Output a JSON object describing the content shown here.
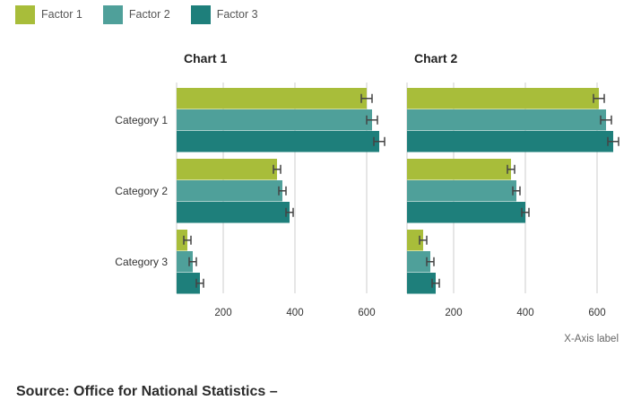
{
  "legend": [
    {
      "label": "Factor 1",
      "color": "#a8bd3a"
    },
    {
      "label": "Factor 2",
      "color": "#4fa09a"
    },
    {
      "label": "Factor 3",
      "color": "#1e7f7b"
    }
  ],
  "chart_data": [
    {
      "type": "bar",
      "orientation": "horizontal",
      "title": "Chart 1",
      "categories": [
        "Category 1",
        "Category 2",
        "Category 3"
      ],
      "series": [
        {
          "name": "Factor 1",
          "values": [
            600,
            350,
            100
          ],
          "error": [
            15,
            10,
            10
          ]
        },
        {
          "name": "Factor 2",
          "values": [
            615,
            365,
            115
          ],
          "error": [
            15,
            10,
            10
          ]
        },
        {
          "name": "Factor 3",
          "values": [
            635,
            385,
            135
          ],
          "error": [
            15,
            10,
            10
          ]
        }
      ],
      "xticks": [
        200,
        400,
        600
      ],
      "xlim": [
        70,
        660
      ],
      "xlabel": "",
      "grid": true
    },
    {
      "type": "bar",
      "orientation": "horizontal",
      "title": "Chart 2",
      "categories": [
        "Category 1",
        "Category 2",
        "Category 3"
      ],
      "series": [
        {
          "name": "Factor 1",
          "values": [
            605,
            360,
            115
          ],
          "error": [
            15,
            10,
            10
          ]
        },
        {
          "name": "Factor 2",
          "values": [
            625,
            375,
            135
          ],
          "error": [
            15,
            10,
            10
          ]
        },
        {
          "name": "Factor 3",
          "values": [
            645,
            400,
            150
          ],
          "error": [
            15,
            10,
            10
          ]
        }
      ],
      "xticks": [
        200,
        400,
        600
      ],
      "xlim": [
        70,
        660
      ],
      "xlabel": "X-Axis label",
      "grid": true
    }
  ],
  "source": "Source: Office for National Statistics –"
}
